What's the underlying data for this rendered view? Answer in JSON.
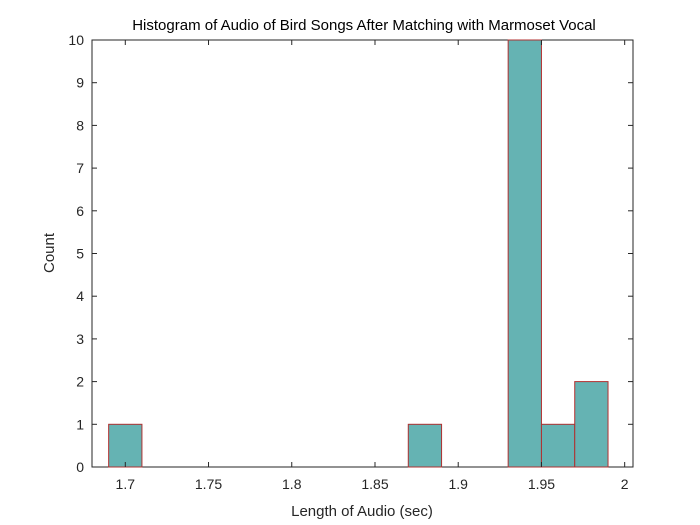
{
  "chart_data": {
    "type": "bar",
    "title": "Histogram of Audio of Bird Songs After Matching with Marmoset Vocal",
    "xlabel": "Length of Audio (sec)",
    "ylabel": "Count",
    "xlim": [
      1.68,
      2.005
    ],
    "ylim": [
      0,
      10
    ],
    "bin_width": 0.02,
    "bins": [
      {
        "start": 1.69,
        "end": 1.71,
        "count": 1
      },
      {
        "start": 1.87,
        "end": 1.89,
        "count": 1
      },
      {
        "start": 1.93,
        "end": 1.95,
        "count": 10
      },
      {
        "start": 1.95,
        "end": 1.97,
        "count": 1
      },
      {
        "start": 1.97,
        "end": 1.99,
        "count": 2
      }
    ],
    "xticks": [
      "1.7",
      "1.75",
      "1.8",
      "1.85",
      "1.9",
      "1.95",
      "2"
    ],
    "yticks": [
      "0",
      "1",
      "2",
      "3",
      "4",
      "5",
      "6",
      "7",
      "8",
      "9",
      "10"
    ],
    "bar_color": "#65b3b3",
    "bar_edge_color": "#b03030",
    "grid": false
  }
}
